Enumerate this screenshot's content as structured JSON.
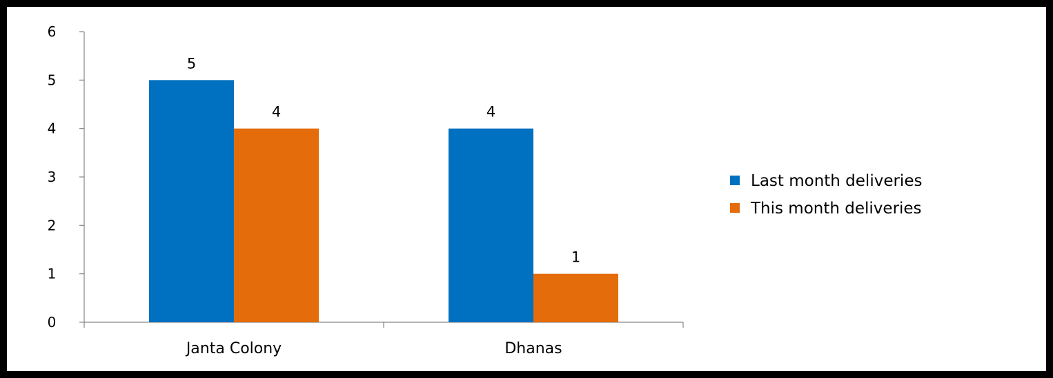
{
  "chart_data": {
    "type": "bar",
    "categories": [
      "Janta Colony",
      "Dhanas"
    ],
    "series": [
      {
        "name": "Last month deliveries",
        "values": [
          5,
          4
        ],
        "color": "#0070c0"
      },
      {
        "name": "This month deliveries",
        "values": [
          4,
          1
        ],
        "color": "#e46c0a"
      }
    ],
    "ylim": [
      0,
      6
    ],
    "yticks": [
      "0",
      "1",
      "2",
      "3",
      "4",
      "5",
      "6"
    ],
    "data_labels": true,
    "grid": false,
    "legend_position": "right"
  }
}
